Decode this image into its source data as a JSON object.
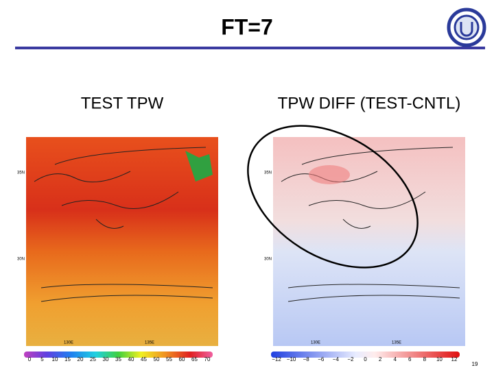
{
  "title": "FT=7",
  "panels": [
    {
      "label": "TEST  TPW",
      "map_labels": {
        "lat": [
          "35N",
          "30N"
        ],
        "lon": [
          "130E",
          "135E"
        ]
      },
      "colorbar": {
        "ticks": [
          "0",
          "5",
          "10",
          "15",
          "20",
          "25",
          "30",
          "35",
          "40",
          "45",
          "50",
          "55",
          "60",
          "65",
          "70"
        ]
      }
    },
    {
      "label": "TPW DIFF (TEST-CNTL)",
      "map_labels": {
        "lat": [
          "35N",
          "30N"
        ],
        "lon": [
          "130E",
          "135E"
        ]
      },
      "colorbar": {
        "ticks": [
          "−12",
          "−10",
          "−8",
          "−6",
          "−4",
          "−2",
          "0",
          "2",
          "4",
          "6",
          "8",
          "10",
          "12"
        ]
      }
    }
  ],
  "page_number": "19"
}
